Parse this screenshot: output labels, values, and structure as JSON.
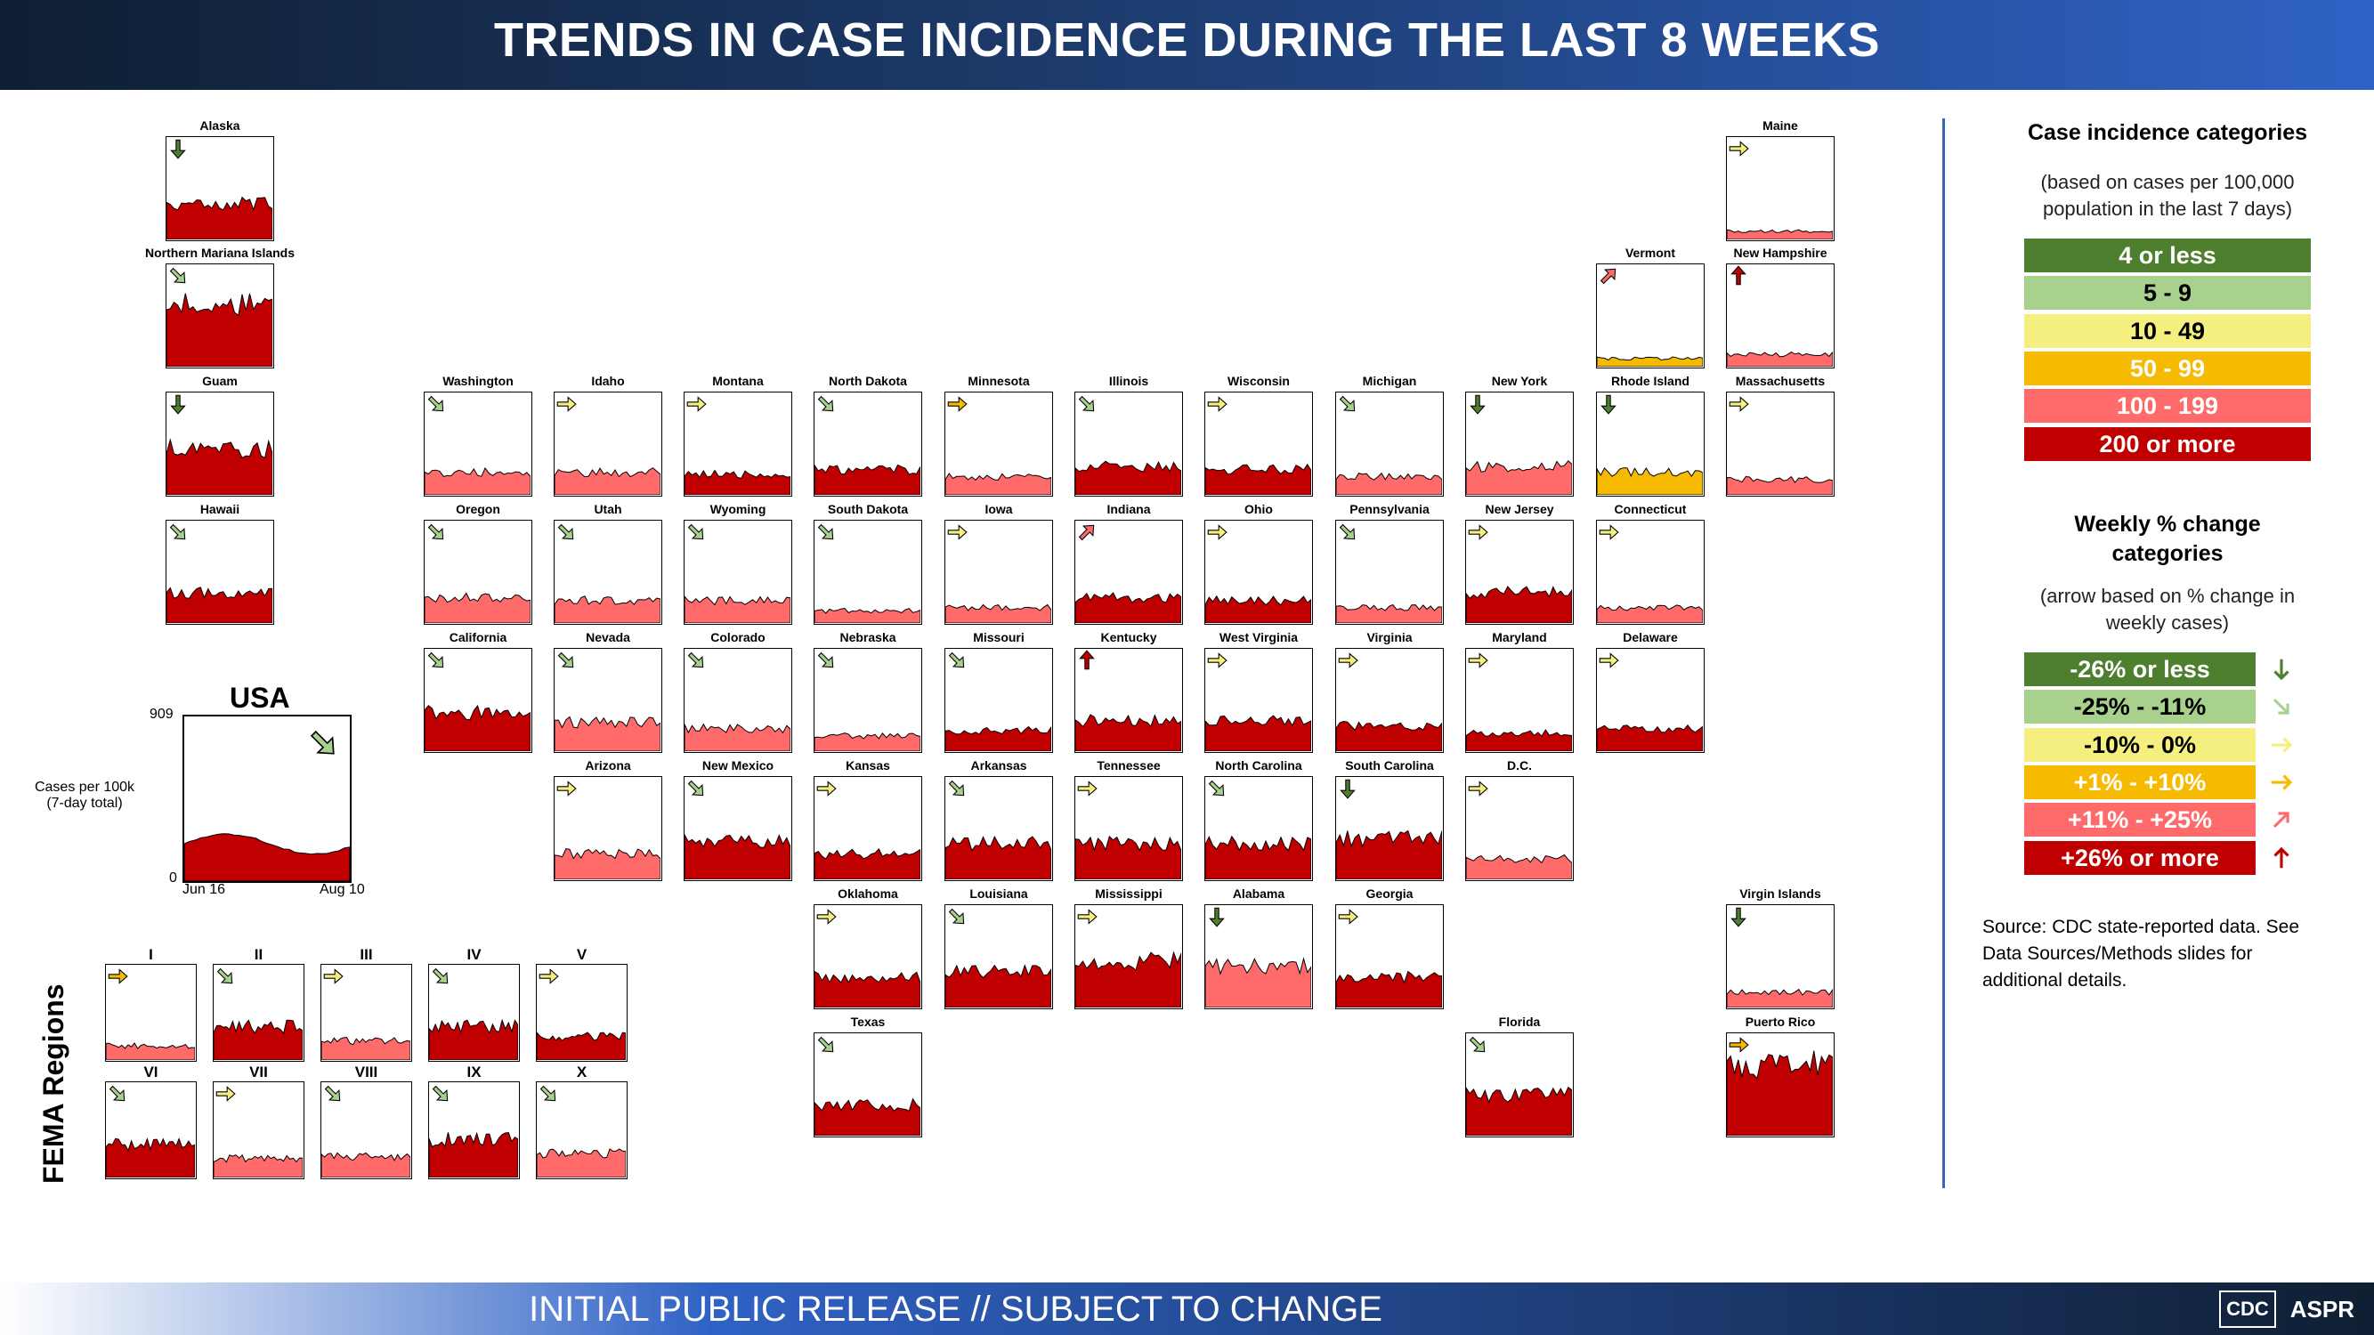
{
  "header": {
    "title": "TRENDS IN CASE INCIDENCE DURING THE LAST 8 WEEKS"
  },
  "footer": {
    "text": "INITIAL PUBLIC RELEASE // SUBJECT TO CHANGE",
    "logos": [
      "CDC",
      "ASPR"
    ]
  },
  "colors": {
    "cat": [
      "#4e7f2e",
      "#a8d18d",
      "#f5ef80",
      "#f6bb00",
      "#ff6b6b",
      "#c00000"
    ],
    "arrow": {
      "down": "#4e7f2e",
      "downright": "#a8d18d",
      "right_lo": "#f5ef80",
      "right_hi": "#f6bb00",
      "upright": "#ff6b6b",
      "up": "#c00000"
    }
  },
  "usa": {
    "label": "USA",
    "ylabel": "Cases per 100k\n(7-day total)",
    "ymax": "909",
    "ymin": "0",
    "xstart": "Jun 16",
    "xend": "Aug 10"
  },
  "fema": {
    "label": "FEMA Regions"
  },
  "legend": {
    "title1": "Case incidence categories",
    "sub1": "(based on cases per 100,000 population in the last 7 days)",
    "cats": [
      "4 or less",
      "5 - 9",
      "10 - 49",
      "50 - 99",
      "100 - 199",
      "200 or more"
    ],
    "title2": "Weekly % change categories",
    "sub2": "(arrow based on % change in weekly cases)",
    "changes": [
      "-26% or less",
      "-25% - -11%",
      "-10% - 0%",
      "+1% - +10%",
      "+11% - +25%",
      "+26% or more"
    ],
    "source": "Source: CDC state-reported data. See Data Sources/Methods slides for additional details."
  },
  "tiles": [
    {
      "name": "Alaska",
      "c": 5,
      "a": "down",
      "lvl": 0.35
    },
    {
      "name": "Northern Mariana Islands",
      "c": 5,
      "a": "downright",
      "lvl": 0.6
    },
    {
      "name": "Guam",
      "c": 5,
      "a": "down",
      "lvl": 0.45
    },
    {
      "name": "Hawaii",
      "c": 5,
      "a": "downright",
      "lvl": 0.3
    },
    {
      "name": "Maine",
      "c": 4,
      "a": "right_lo",
      "lvl": 0.08
    },
    {
      "name": "Vermont",
      "c": 3,
      "a": "upright",
      "lvl": 0.08
    },
    {
      "name": "New Hampshire",
      "c": 4,
      "a": "up",
      "lvl": 0.12
    },
    {
      "name": "Washington",
      "c": 4,
      "a": "downright",
      "lvl": 0.22
    },
    {
      "name": "Idaho",
      "c": 4,
      "a": "right_lo",
      "lvl": 0.22
    },
    {
      "name": "Montana",
      "c": 5,
      "a": "right_lo",
      "lvl": 0.2
    },
    {
      "name": "North Dakota",
      "c": 5,
      "a": "downright",
      "lvl": 0.25
    },
    {
      "name": "Minnesota",
      "c": 4,
      "a": "right_hi",
      "lvl": 0.18
    },
    {
      "name": "Illinois",
      "c": 5,
      "a": "downright",
      "lvl": 0.28
    },
    {
      "name": "Wisconsin",
      "c": 5,
      "a": "right_lo",
      "lvl": 0.25
    },
    {
      "name": "Michigan",
      "c": 4,
      "a": "downright",
      "lvl": 0.18
    },
    {
      "name": "New York",
      "c": 4,
      "a": "down",
      "lvl": 0.28
    },
    {
      "name": "Rhode Island",
      "c": 3,
      "a": "down",
      "lvl": 0.22
    },
    {
      "name": "Massachusetts",
      "c": 4,
      "a": "right_lo",
      "lvl": 0.15
    },
    {
      "name": "Oregon",
      "c": 4,
      "a": "downright",
      "lvl": 0.25
    },
    {
      "name": "Utah",
      "c": 4,
      "a": "downright",
      "lvl": 0.22
    },
    {
      "name": "Wyoming",
      "c": 4,
      "a": "downright",
      "lvl": 0.22
    },
    {
      "name": "South Dakota",
      "c": 4,
      "a": "downright",
      "lvl": 0.12
    },
    {
      "name": "Iowa",
      "c": 4,
      "a": "right_lo",
      "lvl": 0.15
    },
    {
      "name": "Indiana",
      "c": 5,
      "a": "upright",
      "lvl": 0.25
    },
    {
      "name": "Ohio",
      "c": 5,
      "a": "right_lo",
      "lvl": 0.22
    },
    {
      "name": "Pennsylvania",
      "c": 4,
      "a": "downright",
      "lvl": 0.15
    },
    {
      "name": "New Jersey",
      "c": 5,
      "a": "right_lo",
      "lvl": 0.3
    },
    {
      "name": "Connecticut",
      "c": 4,
      "a": "right_lo",
      "lvl": 0.15
    },
    {
      "name": "California",
      "c": 5,
      "a": "downright",
      "lvl": 0.38
    },
    {
      "name": "Nevada",
      "c": 4,
      "a": "downright",
      "lvl": 0.28
    },
    {
      "name": "Colorado",
      "c": 4,
      "a": "downright",
      "lvl": 0.22
    },
    {
      "name": "Nebraska",
      "c": 4,
      "a": "downright",
      "lvl": 0.15
    },
    {
      "name": "Missouri",
      "c": 5,
      "a": "downright",
      "lvl": 0.2
    },
    {
      "name": "Kentucky",
      "c": 5,
      "a": "up",
      "lvl": 0.3
    },
    {
      "name": "West Virginia",
      "c": 5,
      "a": "right_lo",
      "lvl": 0.3
    },
    {
      "name": "Virginia",
      "c": 5,
      "a": "right_lo",
      "lvl": 0.25
    },
    {
      "name": "Maryland",
      "c": 5,
      "a": "right_lo",
      "lvl": 0.18
    },
    {
      "name": "Delaware",
      "c": 5,
      "a": "right_lo",
      "lvl": 0.22
    },
    {
      "name": "Arizona",
      "c": 4,
      "a": "right_lo",
      "lvl": 0.25
    },
    {
      "name": "New Mexico",
      "c": 5,
      "a": "downright",
      "lvl": 0.38
    },
    {
      "name": "Kansas",
      "c": 5,
      "a": "right_lo",
      "lvl": 0.25
    },
    {
      "name": "Arkansas",
      "c": 5,
      "a": "downright",
      "lvl": 0.35
    },
    {
      "name": "Tennessee",
      "c": 5,
      "a": "right_lo",
      "lvl": 0.35
    },
    {
      "name": "North Carolina",
      "c": 5,
      "a": "downright",
      "lvl": 0.35
    },
    {
      "name": "South Carolina",
      "c": 5,
      "a": "down",
      "lvl": 0.4
    },
    {
      "name": "D.C.",
      "c": 4,
      "a": "right_lo",
      "lvl": 0.2
    },
    {
      "name": "Oklahoma",
      "c": 5,
      "a": "right_lo",
      "lvl": 0.3
    },
    {
      "name": "Louisiana",
      "c": 5,
      "a": "downright",
      "lvl": 0.35
    },
    {
      "name": "Mississippi",
      "c": 5,
      "a": "right_lo",
      "lvl": 0.45
    },
    {
      "name": "Alabama",
      "c": 4,
      "a": "down",
      "lvl": 0.4
    },
    {
      "name": "Georgia",
      "c": 5,
      "a": "right_lo",
      "lvl": 0.3
    },
    {
      "name": "Virgin Islands",
      "c": 4,
      "a": "down",
      "lvl": 0.15
    },
    {
      "name": "Texas",
      "c": 5,
      "a": "downright",
      "lvl": 0.3
    },
    {
      "name": "Florida",
      "c": 5,
      "a": "downright",
      "lvl": 0.4
    },
    {
      "name": "Puerto Rico",
      "c": 5,
      "a": "right_hi",
      "lvl": 0.7
    }
  ],
  "regions": [
    {
      "name": "I",
      "c": 4,
      "a": "right_hi",
      "lvl": 0.15
    },
    {
      "name": "II",
      "c": 5,
      "a": "downright",
      "lvl": 0.35
    },
    {
      "name": "III",
      "c": 4,
      "a": "right_lo",
      "lvl": 0.2
    },
    {
      "name": "IV",
      "c": 5,
      "a": "downright",
      "lvl": 0.35
    },
    {
      "name": "V",
      "c": 5,
      "a": "right_lo",
      "lvl": 0.25
    },
    {
      "name": "VI",
      "c": 5,
      "a": "downright",
      "lvl": 0.35
    },
    {
      "name": "VII",
      "c": 4,
      "a": "right_lo",
      "lvl": 0.2
    },
    {
      "name": "VIII",
      "c": 4,
      "a": "downright",
      "lvl": 0.22
    },
    {
      "name": "IX",
      "c": 5,
      "a": "downright",
      "lvl": 0.4
    },
    {
      "name": "X",
      "c": 4,
      "a": "downright",
      "lvl": 0.25
    }
  ]
}
